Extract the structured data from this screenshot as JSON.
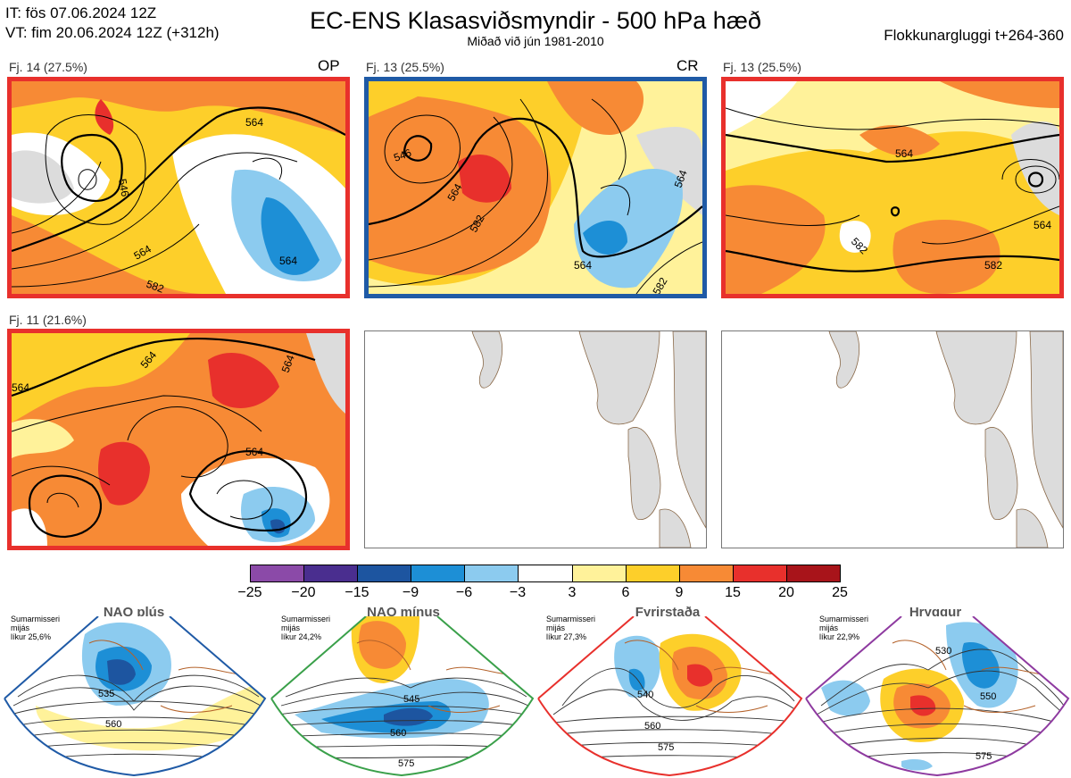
{
  "header": {
    "it": "IT: fös 07.06.2024 12Z",
    "vt": "VT: fim 20.06.2024 12Z  (+312h)",
    "title": "EC-ENS Klasasviðsmyndir - 500 hPa hæð",
    "subtitle": "Miðað við jún 1981-2010",
    "window": "Flokkunargluggi t+264-360"
  },
  "panels": [
    {
      "label": "Fj. 14 (27.5%)",
      "tag": "OP",
      "frame_color": "#e8302c",
      "contours": [
        "546",
        "564",
        "564",
        "564",
        "582"
      ]
    },
    {
      "label": "Fj. 13 (25.5%)",
      "tag": "CR",
      "frame_color": "#1f5aa6",
      "contours": [
        "546",
        "564",
        "582",
        "564",
        "564",
        "582"
      ]
    },
    {
      "label": "Fj. 13 (25.5%)",
      "tag": "",
      "frame_color": "#e8302c",
      "contours": [
        "564",
        "564",
        "582",
        "582"
      ]
    },
    {
      "label": "Fj. 11 (21.6%)",
      "tag": "",
      "frame_color": "#e8302c",
      "contours": [
        "564",
        "564",
        "564",
        "564"
      ]
    }
  ],
  "colorbar": {
    "ticks": [
      "−25",
      "−20",
      "−15",
      "−9",
      "−6",
      "−3",
      "3",
      "6",
      "9",
      "15",
      "20",
      "25"
    ],
    "colors": [
      "#8b4aa8",
      "#4a2e8f",
      "#1d55a0",
      "#1d8fd6",
      "#8ccbef",
      "#ffffff",
      "#fff29a",
      "#fdcf2a",
      "#f78a35",
      "#e8302c",
      "#a8141a"
    ]
  },
  "regimes": [
    {
      "name": "NAO plús",
      "season": "Sumarmisseri",
      "line2": "mijás",
      "prob": "líkur 25,6%",
      "color": "#1f5aa6",
      "dot_color": "#1f5aa6",
      "contours": [
        "535",
        "560"
      ]
    },
    {
      "name": "NAO mínus",
      "season": "Sumarmisseri",
      "line2": "mijás",
      "prob": "líkur 24,2%",
      "color": "#3aa04a",
      "dot_color": "#2bb04a",
      "contours": [
        "545",
        "560",
        "575"
      ]
    },
    {
      "name": "Fyrirstaða",
      "season": "Sumarmisseri",
      "line2": "mijás",
      "prob": "líkur 27,3%",
      "color": "#e8302c",
      "dot_color": "#e8302c",
      "contours": [
        "540",
        "560",
        "575"
      ]
    },
    {
      "name": "Hryggur",
      "season": "Sumarmisseri",
      "line2": "mijás",
      "prob": "líkur 22,9%",
      "color": "#8e3aa0",
      "dot_color": "#ee82ee",
      "contours": [
        "530",
        "550",
        "575"
      ]
    }
  ]
}
